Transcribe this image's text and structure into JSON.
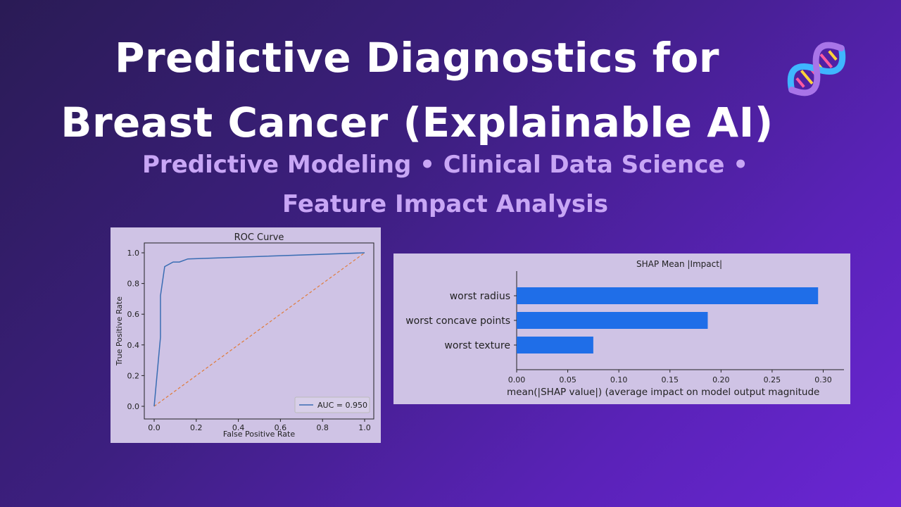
{
  "header": {
    "title_line1": "Predictive Diagnostics for",
    "title_line2": "Breast Cancer (Explainable AI)",
    "subtitle_line1": "Predictive Modeling • Clinical Data Science •",
    "subtitle_line2": "Feature Impact Analysis",
    "icon": "dna-icon"
  },
  "colors": {
    "roc_line": "#3a6db3",
    "chance_line": "#e07b39",
    "shap_bar": "#1f6ee8",
    "panel_bg": "#cfc3e5"
  },
  "chart_data": [
    {
      "type": "line",
      "title": "ROC Curve",
      "xlabel": "False Positive Rate",
      "ylabel": "True Positive Rate",
      "xlim": [
        0,
        1
      ],
      "ylim": [
        0,
        1
      ],
      "xticks": [
        "0.0",
        "0.2",
        "0.4",
        "0.6",
        "0.8",
        "1.0"
      ],
      "yticks": [
        "0.0",
        "0.2",
        "0.4",
        "0.6",
        "0.8",
        "1.0"
      ],
      "series": [
        {
          "name": "AUC = 0.950",
          "x": [
            0.0,
            0.03,
            0.03,
            0.03,
            0.05,
            0.09,
            0.12,
            0.16,
            1.0
          ],
          "y": [
            0.0,
            0.45,
            0.69,
            0.72,
            0.91,
            0.94,
            0.94,
            0.96,
            1.0
          ]
        },
        {
          "name": "",
          "style": "dashed",
          "x": [
            0,
            1
          ],
          "y": [
            0,
            1
          ]
        }
      ],
      "legend": "lower-right",
      "grid": false
    },
    {
      "type": "bar",
      "orientation": "horizontal",
      "title": "SHAP Mean |Impact|",
      "xlabel": "mean(|SHAP value|) (average impact on model output magnitude",
      "categories": [
        "worst radius",
        "worst concave points",
        "worst texture"
      ],
      "values": [
        0.295,
        0.187,
        0.075
      ],
      "xlim": [
        0,
        0.31
      ],
      "xticks": [
        "0.00",
        "0.05",
        "0.10",
        "0.15",
        "0.20",
        "0.25",
        "0.30"
      ],
      "grid": false
    }
  ]
}
